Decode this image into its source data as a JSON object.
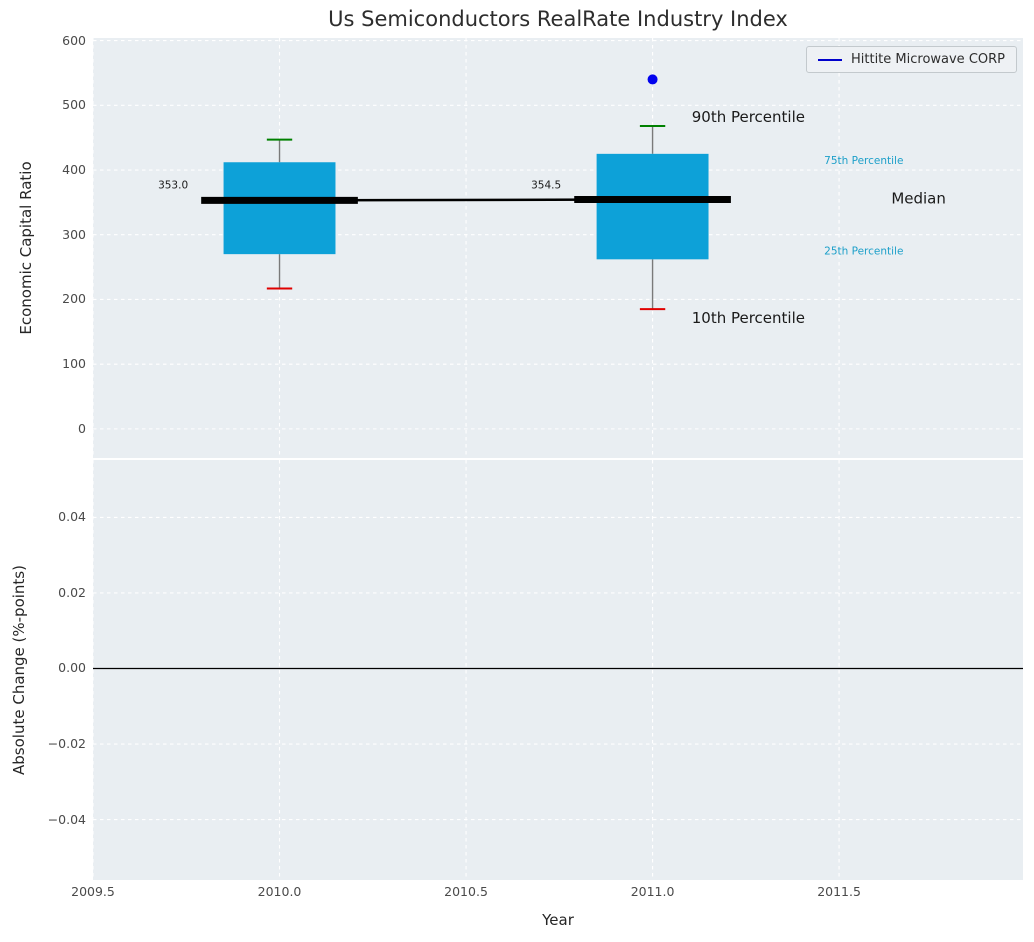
{
  "chart_data": [
    {
      "type": "boxplot",
      "title": "Us Semiconductors RealRate Industry Index",
      "xlabel": "Year",
      "ylabel": "Economic Capital Ratio",
      "xlim": [
        2009.5,
        2011.993
      ],
      "ylim": [
        -45,
        604
      ],
      "xticks": [
        "2009.5",
        "2010.0",
        "2010.5",
        "2011.0",
        "2011.5"
      ],
      "xtick_values": [
        2009.5,
        2010.0,
        2010.5,
        2011.0,
        2011.5
      ],
      "yticks": [
        "0",
        "100",
        "200",
        "300",
        "400",
        "500",
        "600"
      ],
      "ytick_values": [
        0,
        100,
        200,
        300,
        400,
        500,
        600
      ],
      "grid": true,
      "box_width": 0.3,
      "cap_halfwidth": 0.034,
      "median_bar_halfwidth": 0.21,
      "boxes": [
        {
          "x": 2010,
          "q1": 270,
          "median": 353.0,
          "q3": 412,
          "whisker_low": 217,
          "whisker_high": 447
        },
        {
          "x": 2011,
          "q1": 262,
          "median": 354.5,
          "q3": 425,
          "whisker_low": 185,
          "whisker_high": 468
        }
      ],
      "median_values": [
        {
          "x": 2010,
          "y": 353.0,
          "label": "353.0"
        },
        {
          "x": 2011,
          "y": 354.5,
          "label": "354.5"
        }
      ],
      "company_series": {
        "name": "Hittite Microwave CORP",
        "points": [
          {
            "x": 2011,
            "y": 540
          }
        ],
        "color": "#0202ee"
      },
      "legend": {
        "label": "Hittite Microwave CORP",
        "position": "upper right",
        "line_color": "#0000cc"
      },
      "annotations": [
        {
          "label": "90th Percentile",
          "x": 2011.105,
          "y": 482,
          "fontsize": 15,
          "color": "#1a1a1a",
          "anchor": "start"
        },
        {
          "label": "10th Percentile",
          "x": 2011.105,
          "y": 172,
          "fontsize": 15,
          "color": "#1a1a1a",
          "anchor": "start"
        },
        {
          "label": "75th Percentile",
          "x": 2011.46,
          "y": 415,
          "fontsize": 10.5,
          "color": "#1c9fc9",
          "anchor": "start"
        },
        {
          "label": "Median",
          "x": 2011.64,
          "y": 356,
          "fontsize": 15,
          "color": "#1a1a1a",
          "anchor": "start"
        },
        {
          "label": "25th Percentile",
          "x": 2011.46,
          "y": 275,
          "fontsize": 10.5,
          "color": "#1c9fc9",
          "anchor": "start"
        },
        {
          "label": "353.0",
          "x": 2009.755,
          "y": 377,
          "fontsize": 10.5,
          "color": "#1a1a1a",
          "anchor": "end"
        },
        {
          "label": "354.5",
          "x": 2010.755,
          "y": 377,
          "fontsize": 10.5,
          "color": "#1a1a1a",
          "anchor": "end"
        }
      ],
      "colors": {
        "box": "#0da1d8",
        "whisker": "#7a7a7a",
        "cap_high": "#008000",
        "cap_low": "#e00000",
        "median": "#000000"
      }
    },
    {
      "type": "line",
      "ylabel": "Absolute Change (%-points)",
      "ylim": [
        -0.056,
        0.0552
      ],
      "yticks": [
        "0.04",
        "0.02",
        "0.00",
        "−0.02",
        "−0.04"
      ],
      "ytick_values": [
        0.04,
        0.02,
        0.0,
        -0.02,
        -0.04
      ],
      "zero_line": 0.0,
      "series": []
    }
  ],
  "colors": {
    "panel": "#e9eef2",
    "grid": "#ffffff",
    "figure_bg": "#ffffff",
    "tick_label": "#4a4a4a",
    "text": "#262626"
  }
}
